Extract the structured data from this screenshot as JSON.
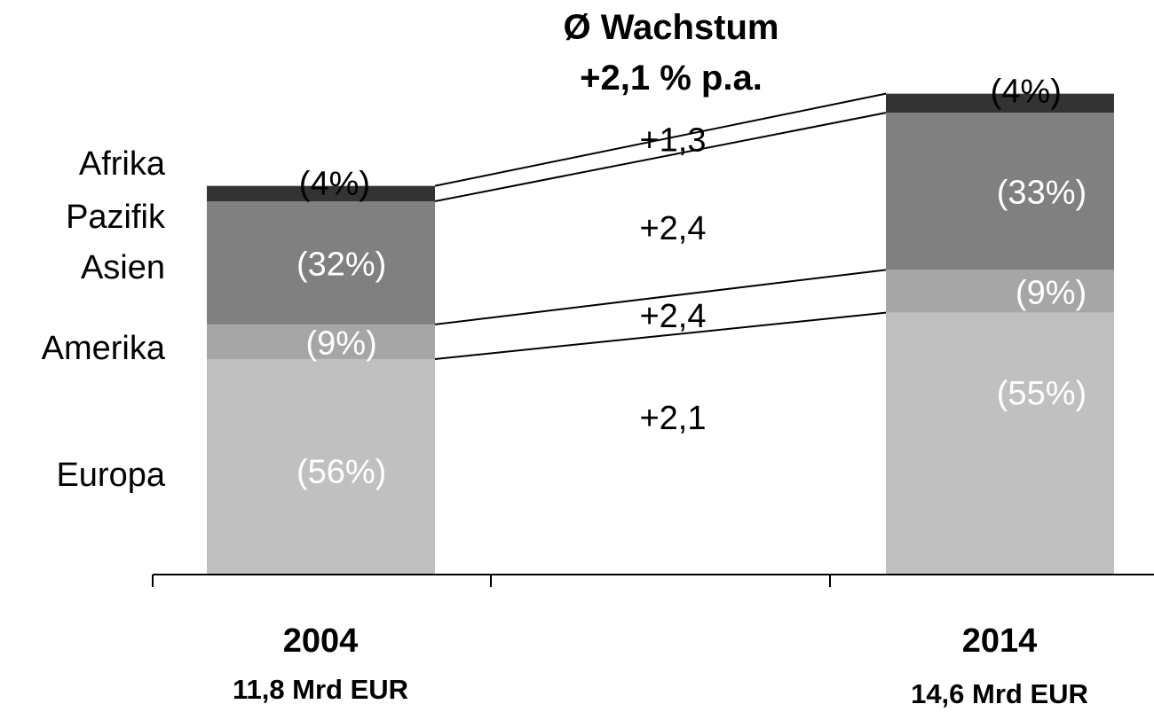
{
  "chart_data": {
    "type": "bar",
    "stacked": true,
    "title": "Ø Wachstum",
    "subtitle": "+2,1 % p.a.",
    "categories": [
      "2004",
      "2014"
    ],
    "totals": [
      "11,8 Mrd EUR",
      "14,6 Mrd EUR"
    ],
    "total_values": [
      11.8,
      14.6
    ],
    "series": [
      {
        "name": "Europa",
        "shares": [
          56,
          55
        ],
        "labels": [
          "(56%)",
          "(55%)"
        ],
        "growth": "+2,1",
        "color": "#c0c0c0",
        "label_color": "#ffffff"
      },
      {
        "name": "Amerika",
        "shares": [
          9,
          9
        ],
        "labels": [
          "(9%)",
          "(9%)"
        ],
        "growth": "+2,4",
        "color": "#a6a6a6",
        "label_color": "#ffffff"
      },
      {
        "name": "Asien Pazifik",
        "shares": [
          32,
          33
        ],
        "labels": [
          "(32%)",
          "(33%)"
        ],
        "growth": "+2,4",
        "color": "#808080",
        "label_color": "#ffffff"
      },
      {
        "name": "Afrika",
        "shares": [
          4,
          4
        ],
        "labels": [
          "(4%)",
          "(4%)"
        ],
        "growth": "+1,3",
        "color": "#333333",
        "label_color": "#000000"
      }
    ],
    "region_labels": [
      "Afrika",
      "Pazifik",
      "Asien",
      "Amerika",
      "Europa"
    ],
    "legend": "left",
    "grid": false,
    "colors": {
      "background": "#ffffff",
      "axis": "#000000",
      "connector": "#000000"
    }
  }
}
